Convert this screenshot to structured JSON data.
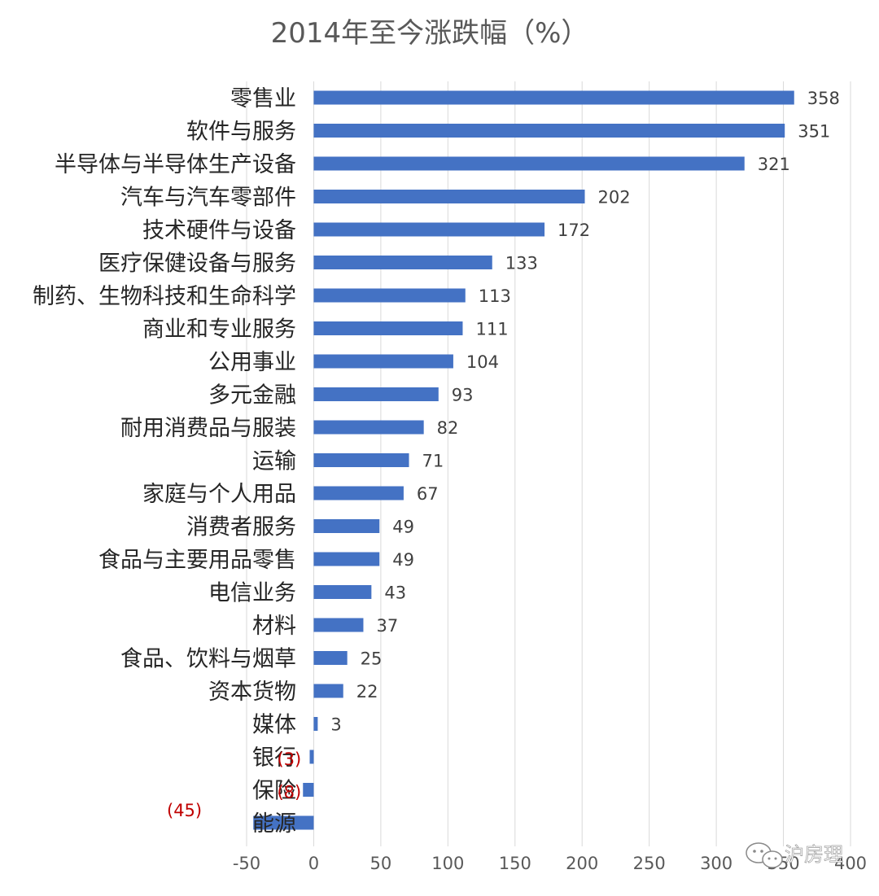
{
  "chart_data": {
    "type": "bar",
    "orientation": "horizontal",
    "title": "2014年至今涨跌幅（%）",
    "xlabel": "",
    "ylabel": "",
    "xlim": [
      -50,
      400
    ],
    "xticks": [
      -50,
      0,
      50,
      100,
      150,
      200,
      250,
      300,
      350,
      400
    ],
    "grid": true,
    "bar_color": "#4472c4",
    "negative_label_color": "#c00000",
    "categories": [
      "零售业",
      "软件与服务",
      "半导体与半导体生产设备",
      "汽车与汽车零部件",
      "技术硬件与设备",
      "医疗保健设备与服务",
      "制药、生物科技和生命科学",
      "商业和专业服务",
      "公用事业",
      "多元金融",
      "耐用消费品与服装",
      "运输",
      "家庭与个人用品",
      "消费者服务",
      "食品与主要用品零售",
      "电信业务",
      "材料",
      "食品、饮料与烟草",
      "资本货物",
      "媒体",
      "银行",
      "保险",
      "能源"
    ],
    "values": [
      358,
      351,
      321,
      202,
      172,
      133,
      113,
      111,
      104,
      93,
      82,
      71,
      67,
      49,
      49,
      43,
      37,
      25,
      22,
      3,
      -3,
      -8,
      -45
    ],
    "data_labels": [
      "358",
      "351",
      "321",
      "202",
      "172",
      "133",
      "113",
      "111",
      "104",
      "93",
      "82",
      "71",
      "67",
      "49",
      "49",
      "43",
      "37",
      "25",
      "22",
      "3",
      "(3)",
      "(8)",
      "(45)"
    ]
  },
  "watermark": {
    "icon": "wechat-icon",
    "text": "沪房理"
  }
}
